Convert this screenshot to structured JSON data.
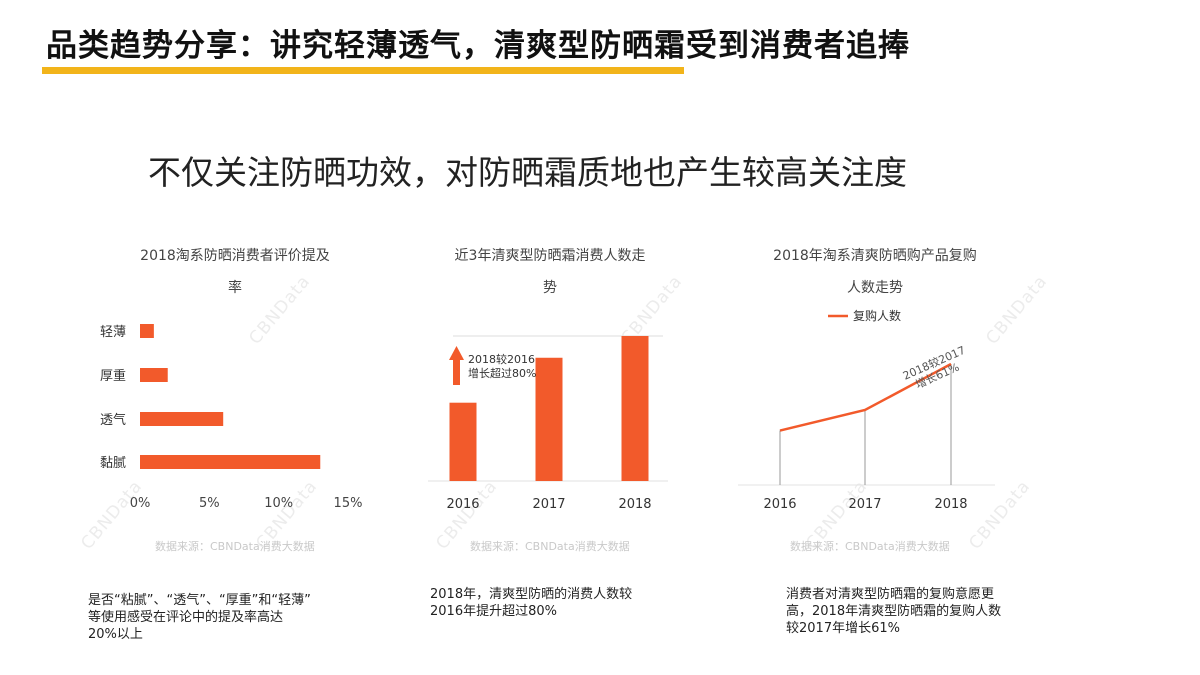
{
  "header": {
    "title": "品类趋势分享：讲究轻薄透气，清爽型防晒霜受到消费者追捧"
  },
  "subtitle": "不仅关注防晒功效，对防晒霜质地也产生较高关注度",
  "watermark": "CBNData",
  "colors": {
    "accent": "#F25A2B",
    "title_bar": "#F2B41A"
  },
  "charts": {
    "c1": {
      "title_line1": "2018淘系防晒消费者评价提及",
      "title_line2": "率",
      "source": "数据来源：CBNData消费大数据"
    },
    "c2": {
      "title_line1": "近3年清爽型防晒霜消费人数走",
      "title_line2": "势",
      "annotation_line1": "2018较2016",
      "annotation_line2": "增长超过80%",
      "source": "数据来源：CBNData消费大数据"
    },
    "c3": {
      "title_line1": "2018年淘系清爽防晒购产品复购",
      "title_line2": "人数走势",
      "legend": "复购人数",
      "annotation_line1": "2018较2017",
      "annotation_line2": "增长61%",
      "source": "数据来源：CBNData消费大数据"
    }
  },
  "captions": {
    "c1_line1": "是否“粘腻”、“透气”、“厚重”和“轻薄”",
    "c1_line2": "等使用感受在评论中的提及率高达",
    "c1_line3": "20%以上",
    "c2_line1": "2018年，清爽型防晒的消费人数较",
    "c2_line2": "2016年提升超过80%",
    "c3_line1": "消费者对清爽型防晒霜的复购意愿更",
    "c3_line2": "高，2018年清爽型防晒霜的复购人数",
    "c3_line3": "较2017年增长61%"
  },
  "chart_data": [
    {
      "type": "bar",
      "orientation": "horizontal",
      "title": "2018淘系防晒消费者评价提及率",
      "categories": [
        "轻薄",
        "厚重",
        "透气",
        "黏腻"
      ],
      "values": [
        1,
        2,
        6,
        13
      ],
      "value_unit": "%",
      "xlim": [
        0,
        15
      ],
      "xticks": [
        "0%",
        "5%",
        "10%",
        "15%"
      ]
    },
    {
      "type": "bar",
      "title": "近3年清爽型防晒霜消费人数走势",
      "categories": [
        "2016",
        "2017",
        "2018"
      ],
      "values": [
        54,
        85,
        100
      ],
      "ylim": [
        0,
        100
      ]
    },
    {
      "type": "line",
      "title": "2018年淘系清爽防晒购产品复购人数走势",
      "series": [
        {
          "name": "复购人数",
          "x": [
            "2016",
            "2017",
            "2018"
          ],
          "values": [
            45,
            62,
            100
          ]
        }
      ],
      "ylim": [
        0,
        100
      ]
    }
  ]
}
